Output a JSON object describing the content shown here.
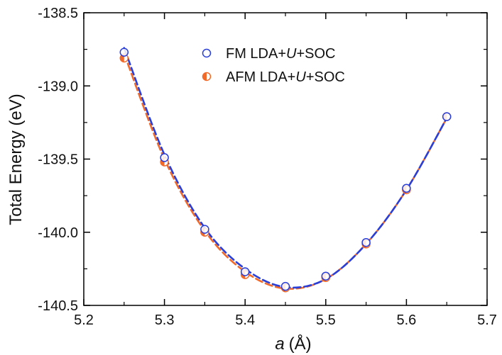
{
  "chart_data": {
    "type": "scatter",
    "x_axis": {
      "label_italic": "a",
      "label_rest": "(Å)",
      "range": [
        5.2,
        5.7
      ],
      "ticks": [
        5.2,
        5.3,
        5.4,
        5.5,
        5.6,
        5.7
      ],
      "tick_labels": [
        "5.2",
        "5.3",
        "5.4",
        "5.5",
        "5.6",
        "5.7"
      ]
    },
    "y_axis": {
      "label": "Total Energy (eV)",
      "range": [
        -140.5,
        -138.5
      ],
      "ticks": [
        -140.5,
        -140.0,
        -139.5,
        -139.0,
        -138.5
      ],
      "tick_labels": [
        "-140.5",
        "-140.0",
        "-139.5",
        "-139.0",
        "-138.5"
      ]
    },
    "legend": {
      "position": "top-center",
      "entries": [
        {
          "prefix": "FM LDA+",
          "italic": "U",
          "suffix": "+SOC"
        },
        {
          "prefix": "AFM LDA+",
          "italic": "U",
          "suffix": "+SOC"
        }
      ]
    },
    "series": [
      {
        "key": "fm",
        "marker": "open-circle",
        "color": "#2a3fd8",
        "line_style": "dashed",
        "x": [
          5.25,
          5.3,
          5.35,
          5.4,
          5.45,
          5.5,
          5.55,
          5.6,
          5.65
        ],
        "y": [
          -138.77,
          -139.49,
          -139.98,
          -140.27,
          -140.37,
          -140.3,
          -140.07,
          -139.7,
          -139.21
        ]
      },
      {
        "key": "afm",
        "marker": "half-filled-circle",
        "color": "#f26a2a",
        "line_style": "dashed",
        "x": [
          5.25,
          5.3,
          5.35,
          5.4,
          5.45,
          5.5,
          5.55,
          5.6,
          5.65
        ],
        "y": [
          -138.81,
          -139.52,
          -140.0,
          -140.29,
          -140.38,
          -140.31,
          -140.08,
          -139.71,
          -139.21
        ]
      }
    ],
    "fit_curves": [
      {
        "key": "fm",
        "color": "#2a3fd8",
        "x": [
          5.25,
          5.3,
          5.35,
          5.4,
          5.45,
          5.5,
          5.55,
          5.6,
          5.65
        ],
        "y": [
          -138.74,
          -139.47,
          -139.97,
          -140.25,
          -140.375,
          -140.32,
          -140.08,
          -139.71,
          -139.22
        ]
      },
      {
        "key": "afm",
        "color": "#f26a2a",
        "x": [
          5.25,
          5.3,
          5.35,
          5.4,
          5.45,
          5.5,
          5.55,
          5.6,
          5.65
        ],
        "y": [
          -138.78,
          -139.5,
          -139.99,
          -140.27,
          -140.385,
          -140.32,
          -140.08,
          -139.71,
          -139.22
        ]
      }
    ]
  }
}
